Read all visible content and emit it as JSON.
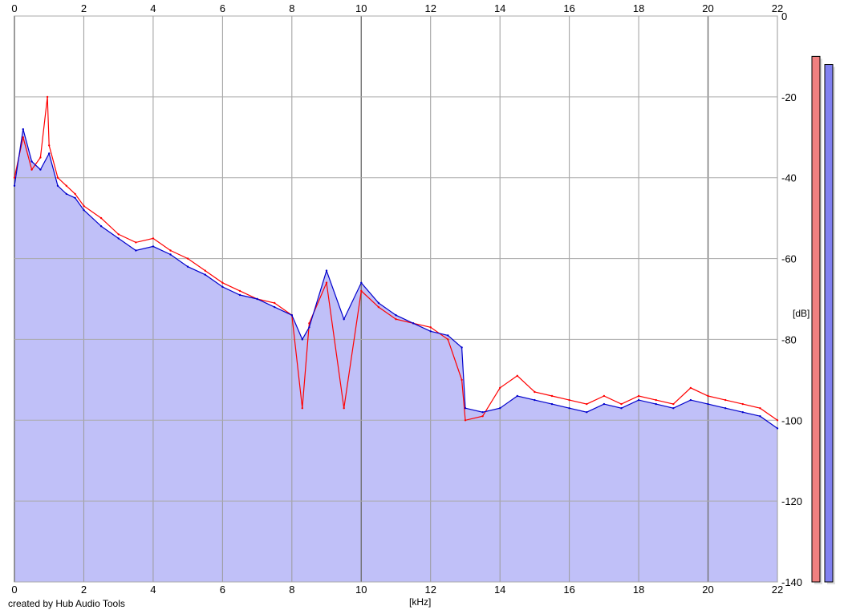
{
  "credit": "created by Hub Audio Tools",
  "chart_data": {
    "type": "area",
    "xlabel": "[kHz]",
    "ylabel": "[dB]",
    "xlim": [
      0,
      22
    ],
    "ylim": [
      -140,
      0
    ],
    "grid": true,
    "x_ticks": [
      "0",
      "2",
      "4",
      "6",
      "8",
      "10",
      "12",
      "14",
      "16",
      "18",
      "20",
      "22"
    ],
    "y_ticks": [
      "0",
      "-20",
      "-40",
      "-60",
      "-80",
      "-100",
      "-120",
      "-140"
    ],
    "colors": {
      "fill": "#c0c0f8",
      "left": "#ff0000",
      "right": "#0000cc",
      "meter_left": "#f08080",
      "meter_right": "#8080f0"
    },
    "series": [
      {
        "channel": "left",
        "x": [
          0,
          0.25,
          0.5,
          0.75,
          0.95,
          1.0,
          1.25,
          1.5,
          1.75,
          2.0,
          2.5,
          3.0,
          3.5,
          4.0,
          4.5,
          5.0,
          5.5,
          6.0,
          6.5,
          7.0,
          7.5,
          8.0,
          8.3,
          8.5,
          9.0,
          9.5,
          10.0,
          10.5,
          11.0,
          11.5,
          12.0,
          12.5,
          12.9,
          13.0,
          13.5,
          14.0,
          14.5,
          15.0,
          15.5,
          16.0,
          16.5,
          17.0,
          17.5,
          18.0,
          18.5,
          19.0,
          19.5,
          20.0,
          20.5,
          21.0,
          21.5,
          22.0
        ],
        "y": [
          -40,
          -30,
          -38,
          -35,
          -20,
          -32,
          -40,
          -42,
          -44,
          -47,
          -50,
          -54,
          -56,
          -55,
          -58,
          -60,
          -63,
          -66,
          -68,
          -70,
          -71,
          -74,
          -97,
          -76,
          -66,
          -97,
          -68,
          -72,
          -75,
          -76,
          -77,
          -80,
          -90,
          -100,
          -99,
          -92,
          -89,
          -93,
          -94,
          -95,
          -96,
          -94,
          -96,
          -94,
          -95,
          -96,
          -92,
          -94,
          -95,
          -96,
          -97,
          -100
        ]
      },
      {
        "channel": "right",
        "x": [
          0,
          0.25,
          0.5,
          0.75,
          1.0,
          1.25,
          1.5,
          1.75,
          2.0,
          2.5,
          3.0,
          3.5,
          4.0,
          4.5,
          5.0,
          5.5,
          6.0,
          6.5,
          7.0,
          7.5,
          8.0,
          8.3,
          8.5,
          9.0,
          9.5,
          10.0,
          10.5,
          11.0,
          11.5,
          12.0,
          12.5,
          12.9,
          13.0,
          13.5,
          14.0,
          14.5,
          15.0,
          15.5,
          16.0,
          16.5,
          17.0,
          17.5,
          18.0,
          18.5,
          19.0,
          19.5,
          20.0,
          20.5,
          21.0,
          21.5,
          22.0
        ],
        "y": [
          -42,
          -28,
          -36,
          -38,
          -34,
          -42,
          -44,
          -45,
          -48,
          -52,
          -55,
          -58,
          -57,
          -59,
          -62,
          -64,
          -67,
          -69,
          -70,
          -72,
          -74,
          -80,
          -77,
          -63,
          -75,
          -66,
          -71,
          -74,
          -76,
          -78,
          -79,
          -82,
          -97,
          -98,
          -97,
          -94,
          -95,
          -96,
          -97,
          -98,
          -96,
          -97,
          -95,
          -96,
          -97,
          -95,
          -96,
          -97,
          -98,
          -99,
          -102
        ]
      }
    ],
    "meters": {
      "left": -10,
      "right": -12
    }
  }
}
